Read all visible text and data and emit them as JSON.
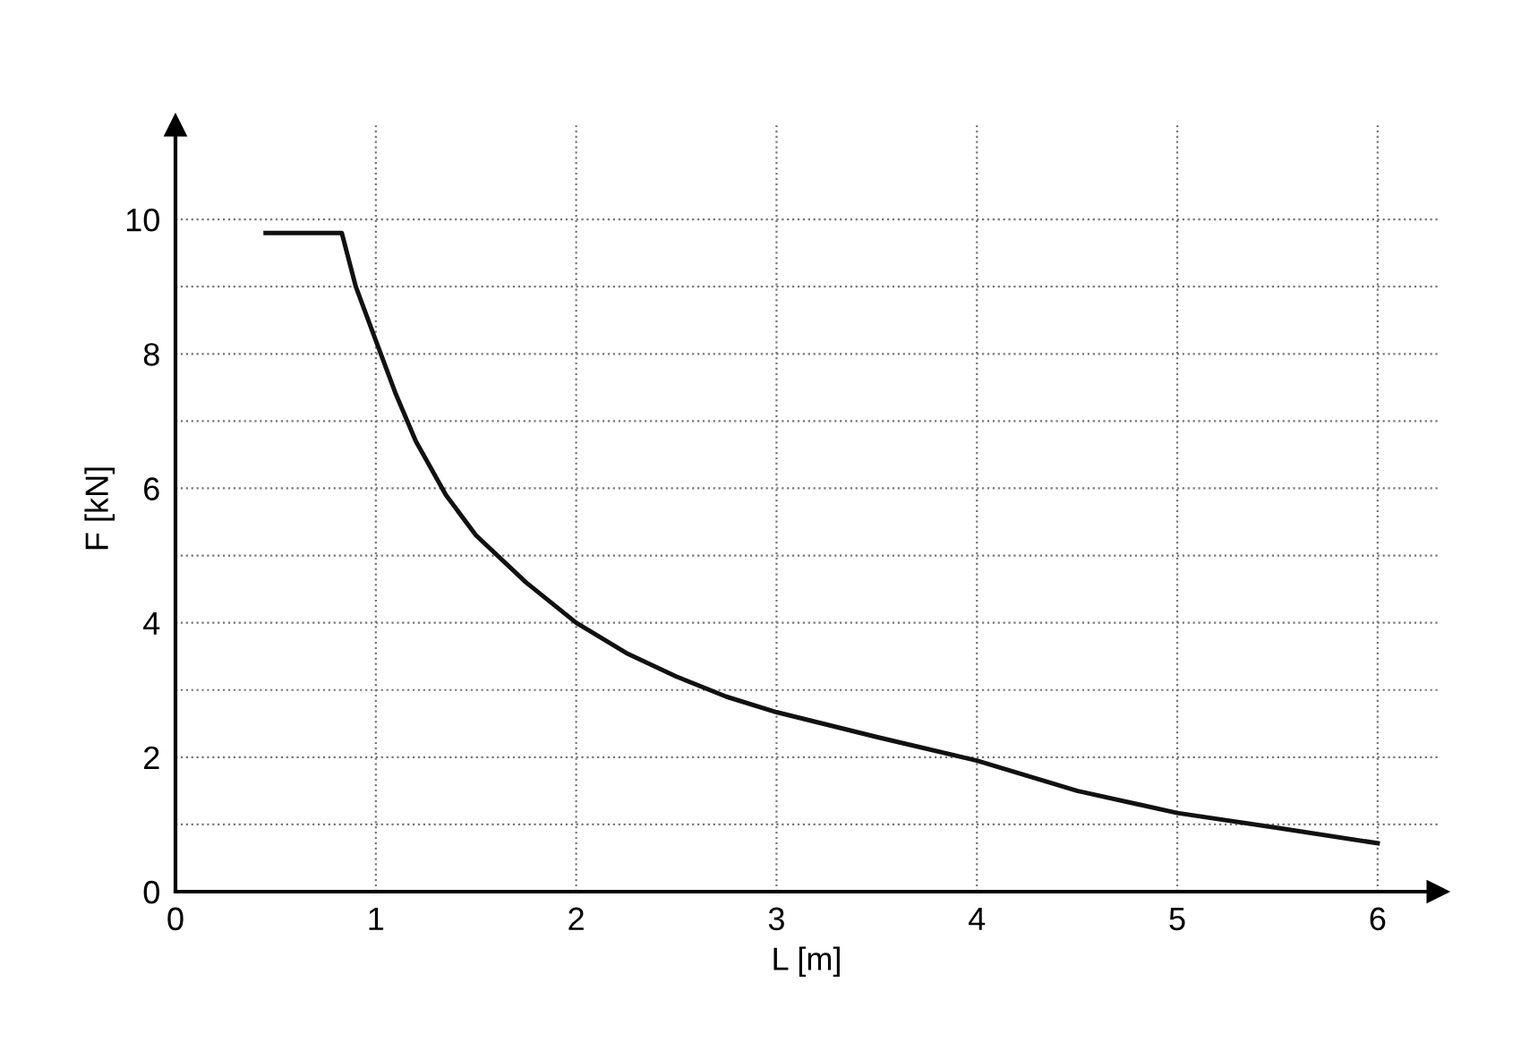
{
  "chart_data": {
    "type": "line",
    "xlabel": "L [m]",
    "ylabel": "F [kN]",
    "x": [
      0.45,
      0.83,
      0.9,
      1.0,
      1.1,
      1.2,
      1.35,
      1.5,
      1.75,
      2.0,
      2.25,
      2.5,
      2.75,
      3.0,
      3.5,
      4.0,
      4.5,
      5.0,
      5.5,
      6.0
    ],
    "series": [
      {
        "color": "#111111",
        "values": [
          9.8,
          9.8,
          9.0,
          8.2,
          7.4,
          6.7,
          5.9,
          5.3,
          4.6,
          4.0,
          3.55,
          3.2,
          2.9,
          2.67,
          2.3,
          1.95,
          1.5,
          1.17,
          0.95,
          0.72
        ]
      }
    ],
    "xlim": [
      0,
      6.3
    ],
    "ylim": [
      0,
      11.4
    ],
    "xticks": [
      0,
      1,
      2,
      3,
      4,
      5,
      6
    ],
    "yticks": [
      0,
      {
        "value": 1,
        "label": null
      },
      2,
      {
        "value": 3,
        "label": null
      },
      4,
      {
        "value": 5,
        "label": null
      },
      6,
      {
        "value": 7,
        "label": null
      },
      8,
      {
        "value": 9,
        "label": null
      },
      10
    ],
    "grid": true,
    "line_style": "solid",
    "marker": "none"
  }
}
